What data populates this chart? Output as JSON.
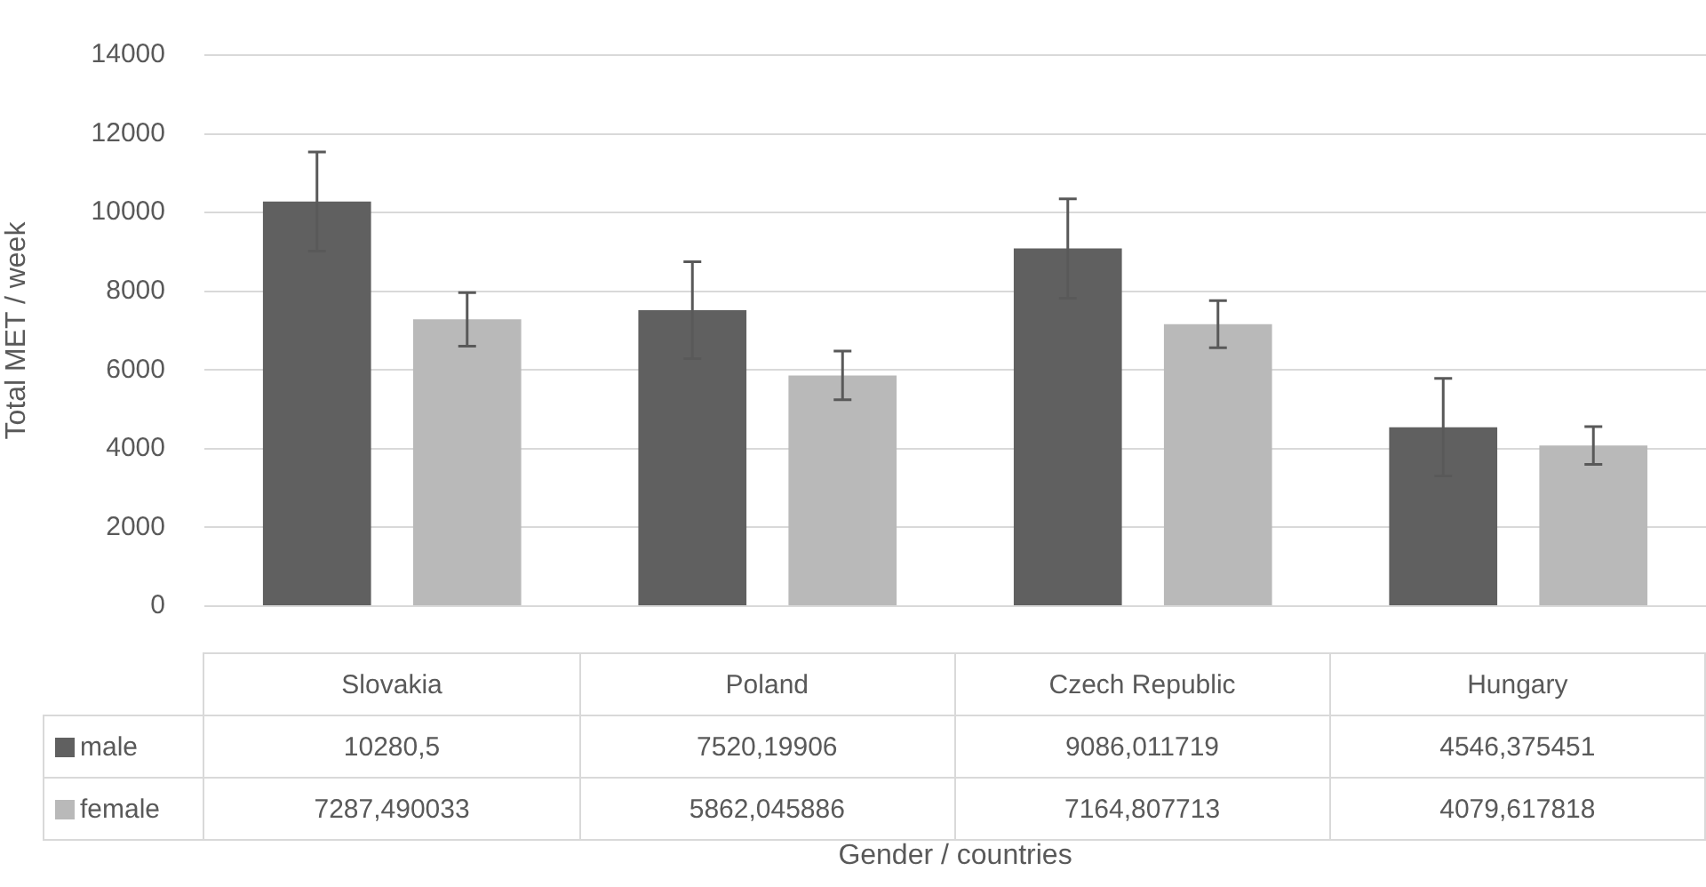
{
  "chart_data": {
    "type": "bar",
    "ylabel": "Total MET / week",
    "xlabel": "Gender / countries",
    "categories": [
      "Slovakia",
      "Poland",
      "Czech Republic",
      "Hungary"
    ],
    "series": [
      {
        "name": "male",
        "color": "#606060",
        "values": [
          10280.5,
          7520.19906,
          9086.011719,
          4546.375451
        ],
        "errors": [
          1260,
          1230,
          1260,
          1240
        ],
        "value_labels": [
          "10280,5",
          "7520,19906",
          "9086,011719",
          "4546,375451"
        ]
      },
      {
        "name": "female",
        "color": "#b9b9b9",
        "values": [
          7287.490033,
          5862.045886,
          7164.807713,
          4079.617818
        ],
        "errors": [
          680,
          620,
          600,
          480
        ],
        "value_labels": [
          "7287,490033",
          "5862,045886",
          "7164,807713",
          "4079,617818"
        ]
      }
    ],
    "ylim": [
      0,
      14000
    ],
    "yticks": [
      0,
      2000,
      4000,
      6000,
      8000,
      10000,
      12000,
      14000
    ],
    "grid": "y",
    "legend": "bottom"
  }
}
